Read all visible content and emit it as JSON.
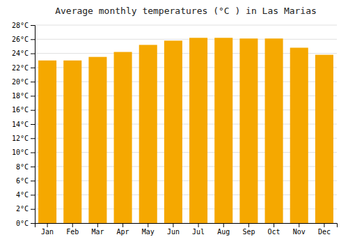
{
  "chart_data": {
    "type": "bar",
    "title": "Average monthly temperatures (°C ) in Las Marias",
    "categories": [
      "Jan",
      "Feb",
      "Mar",
      "Apr",
      "May",
      "Jun",
      "Jul",
      "Aug",
      "Sep",
      "Oct",
      "Nov",
      "Dec"
    ],
    "values": [
      23.0,
      23.0,
      23.5,
      24.2,
      25.2,
      25.8,
      26.2,
      26.2,
      26.1,
      26.1,
      24.8,
      23.8
    ],
    "color": "#F5A800",
    "ylim": [
      0,
      28
    ],
    "yticks": [
      {
        "value": 0,
        "label": "0°C"
      },
      {
        "value": 2,
        "label": "2°C"
      },
      {
        "value": 4,
        "label": "4°C"
      },
      {
        "value": 6,
        "label": "6°C"
      },
      {
        "value": 8,
        "label": "8°C"
      },
      {
        "value": 10,
        "label": "10°C"
      },
      {
        "value": 12,
        "label": "12°C"
      },
      {
        "value": 14,
        "label": "14°C"
      },
      {
        "value": 16,
        "label": "16°C"
      },
      {
        "value": 18,
        "label": "18°C"
      },
      {
        "value": 20,
        "label": "20°C"
      },
      {
        "value": 22,
        "label": "22°C"
      },
      {
        "value": 24,
        "label": "24°C"
      },
      {
        "value": 26,
        "label": "26°C"
      },
      {
        "value": 28,
        "label": "28°C"
      }
    ],
    "grid": true
  }
}
